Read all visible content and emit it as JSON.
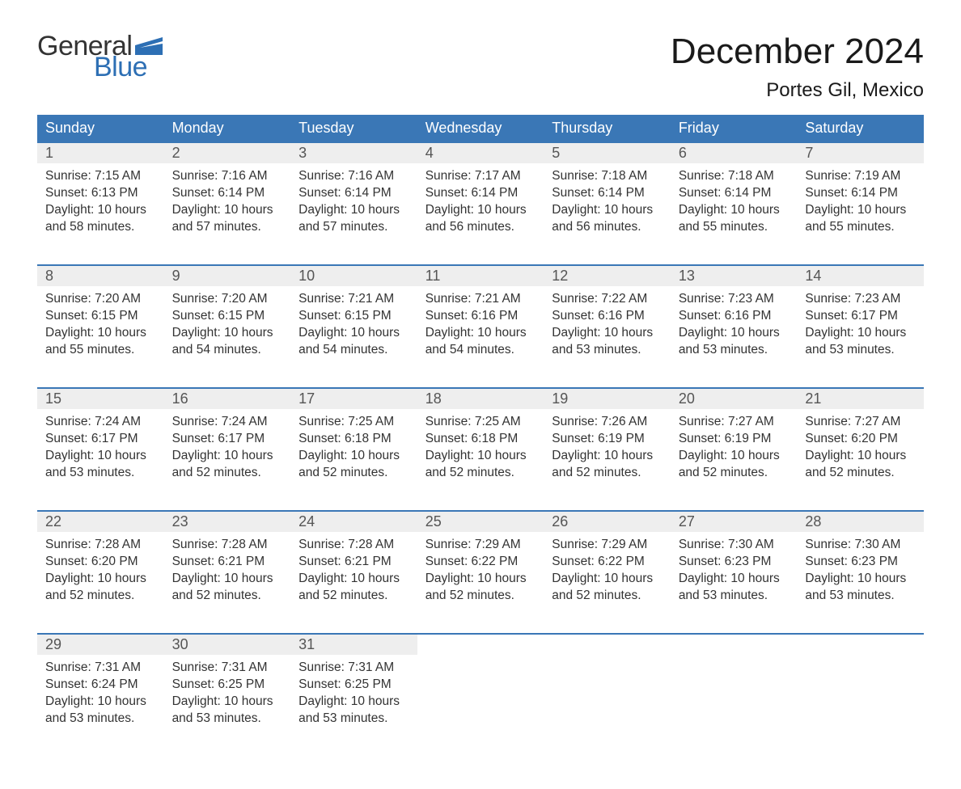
{
  "brand": {
    "word1": "General",
    "word2": "Blue"
  },
  "header": {
    "month_title": "December 2024",
    "location": "Portes Gil, Mexico"
  },
  "colors": {
    "header_bg": "#3a77b6",
    "header_text": "#ffffff",
    "daynum_bg": "#eeeeee",
    "daynum_text": "#555555",
    "body_text": "#333333",
    "rule": "#3a77b6",
    "brand_blue": "#2d6fb4",
    "page_bg": "#ffffff"
  },
  "typography": {
    "month_title_fontsize": 44,
    "location_fontsize": 24,
    "dayheader_fontsize": 18,
    "daynum_fontsize": 18,
    "body_fontsize": 15.5
  },
  "calendar": {
    "type": "table",
    "day_headers": [
      "Sunday",
      "Monday",
      "Tuesday",
      "Wednesday",
      "Thursday",
      "Friday",
      "Saturday"
    ],
    "weeks": [
      [
        {
          "num": "1",
          "sunrise": "Sunrise: 7:15 AM",
          "sunset": "Sunset: 6:13 PM",
          "day1": "Daylight: 10 hours",
          "day2": "and 58 minutes."
        },
        {
          "num": "2",
          "sunrise": "Sunrise: 7:16 AM",
          "sunset": "Sunset: 6:14 PM",
          "day1": "Daylight: 10 hours",
          "day2": "and 57 minutes."
        },
        {
          "num": "3",
          "sunrise": "Sunrise: 7:16 AM",
          "sunset": "Sunset: 6:14 PM",
          "day1": "Daylight: 10 hours",
          "day2": "and 57 minutes."
        },
        {
          "num": "4",
          "sunrise": "Sunrise: 7:17 AM",
          "sunset": "Sunset: 6:14 PM",
          "day1": "Daylight: 10 hours",
          "day2": "and 56 minutes."
        },
        {
          "num": "5",
          "sunrise": "Sunrise: 7:18 AM",
          "sunset": "Sunset: 6:14 PM",
          "day1": "Daylight: 10 hours",
          "day2": "and 56 minutes."
        },
        {
          "num": "6",
          "sunrise": "Sunrise: 7:18 AM",
          "sunset": "Sunset: 6:14 PM",
          "day1": "Daylight: 10 hours",
          "day2": "and 55 minutes."
        },
        {
          "num": "7",
          "sunrise": "Sunrise: 7:19 AM",
          "sunset": "Sunset: 6:14 PM",
          "day1": "Daylight: 10 hours",
          "day2": "and 55 minutes."
        }
      ],
      [
        {
          "num": "8",
          "sunrise": "Sunrise: 7:20 AM",
          "sunset": "Sunset: 6:15 PM",
          "day1": "Daylight: 10 hours",
          "day2": "and 55 minutes."
        },
        {
          "num": "9",
          "sunrise": "Sunrise: 7:20 AM",
          "sunset": "Sunset: 6:15 PM",
          "day1": "Daylight: 10 hours",
          "day2": "and 54 minutes."
        },
        {
          "num": "10",
          "sunrise": "Sunrise: 7:21 AM",
          "sunset": "Sunset: 6:15 PM",
          "day1": "Daylight: 10 hours",
          "day2": "and 54 minutes."
        },
        {
          "num": "11",
          "sunrise": "Sunrise: 7:21 AM",
          "sunset": "Sunset: 6:16 PM",
          "day1": "Daylight: 10 hours",
          "day2": "and 54 minutes."
        },
        {
          "num": "12",
          "sunrise": "Sunrise: 7:22 AM",
          "sunset": "Sunset: 6:16 PM",
          "day1": "Daylight: 10 hours",
          "day2": "and 53 minutes."
        },
        {
          "num": "13",
          "sunrise": "Sunrise: 7:23 AM",
          "sunset": "Sunset: 6:16 PM",
          "day1": "Daylight: 10 hours",
          "day2": "and 53 minutes."
        },
        {
          "num": "14",
          "sunrise": "Sunrise: 7:23 AM",
          "sunset": "Sunset: 6:17 PM",
          "day1": "Daylight: 10 hours",
          "day2": "and 53 minutes."
        }
      ],
      [
        {
          "num": "15",
          "sunrise": "Sunrise: 7:24 AM",
          "sunset": "Sunset: 6:17 PM",
          "day1": "Daylight: 10 hours",
          "day2": "and 53 minutes."
        },
        {
          "num": "16",
          "sunrise": "Sunrise: 7:24 AM",
          "sunset": "Sunset: 6:17 PM",
          "day1": "Daylight: 10 hours",
          "day2": "and 52 minutes."
        },
        {
          "num": "17",
          "sunrise": "Sunrise: 7:25 AM",
          "sunset": "Sunset: 6:18 PM",
          "day1": "Daylight: 10 hours",
          "day2": "and 52 minutes."
        },
        {
          "num": "18",
          "sunrise": "Sunrise: 7:25 AM",
          "sunset": "Sunset: 6:18 PM",
          "day1": "Daylight: 10 hours",
          "day2": "and 52 minutes."
        },
        {
          "num": "19",
          "sunrise": "Sunrise: 7:26 AM",
          "sunset": "Sunset: 6:19 PM",
          "day1": "Daylight: 10 hours",
          "day2": "and 52 minutes."
        },
        {
          "num": "20",
          "sunrise": "Sunrise: 7:27 AM",
          "sunset": "Sunset: 6:19 PM",
          "day1": "Daylight: 10 hours",
          "day2": "and 52 minutes."
        },
        {
          "num": "21",
          "sunrise": "Sunrise: 7:27 AM",
          "sunset": "Sunset: 6:20 PM",
          "day1": "Daylight: 10 hours",
          "day2": "and 52 minutes."
        }
      ],
      [
        {
          "num": "22",
          "sunrise": "Sunrise: 7:28 AM",
          "sunset": "Sunset: 6:20 PM",
          "day1": "Daylight: 10 hours",
          "day2": "and 52 minutes."
        },
        {
          "num": "23",
          "sunrise": "Sunrise: 7:28 AM",
          "sunset": "Sunset: 6:21 PM",
          "day1": "Daylight: 10 hours",
          "day2": "and 52 minutes."
        },
        {
          "num": "24",
          "sunrise": "Sunrise: 7:28 AM",
          "sunset": "Sunset: 6:21 PM",
          "day1": "Daylight: 10 hours",
          "day2": "and 52 minutes."
        },
        {
          "num": "25",
          "sunrise": "Sunrise: 7:29 AM",
          "sunset": "Sunset: 6:22 PM",
          "day1": "Daylight: 10 hours",
          "day2": "and 52 minutes."
        },
        {
          "num": "26",
          "sunrise": "Sunrise: 7:29 AM",
          "sunset": "Sunset: 6:22 PM",
          "day1": "Daylight: 10 hours",
          "day2": "and 52 minutes."
        },
        {
          "num": "27",
          "sunrise": "Sunrise: 7:30 AM",
          "sunset": "Sunset: 6:23 PM",
          "day1": "Daylight: 10 hours",
          "day2": "and 53 minutes."
        },
        {
          "num": "28",
          "sunrise": "Sunrise: 7:30 AM",
          "sunset": "Sunset: 6:23 PM",
          "day1": "Daylight: 10 hours",
          "day2": "and 53 minutes."
        }
      ],
      [
        {
          "num": "29",
          "sunrise": "Sunrise: 7:31 AM",
          "sunset": "Sunset: 6:24 PM",
          "day1": "Daylight: 10 hours",
          "day2": "and 53 minutes."
        },
        {
          "num": "30",
          "sunrise": "Sunrise: 7:31 AM",
          "sunset": "Sunset: 6:25 PM",
          "day1": "Daylight: 10 hours",
          "day2": "and 53 minutes."
        },
        {
          "num": "31",
          "sunrise": "Sunrise: 7:31 AM",
          "sunset": "Sunset: 6:25 PM",
          "day1": "Daylight: 10 hours",
          "day2": "and 53 minutes."
        },
        null,
        null,
        null,
        null
      ]
    ]
  }
}
